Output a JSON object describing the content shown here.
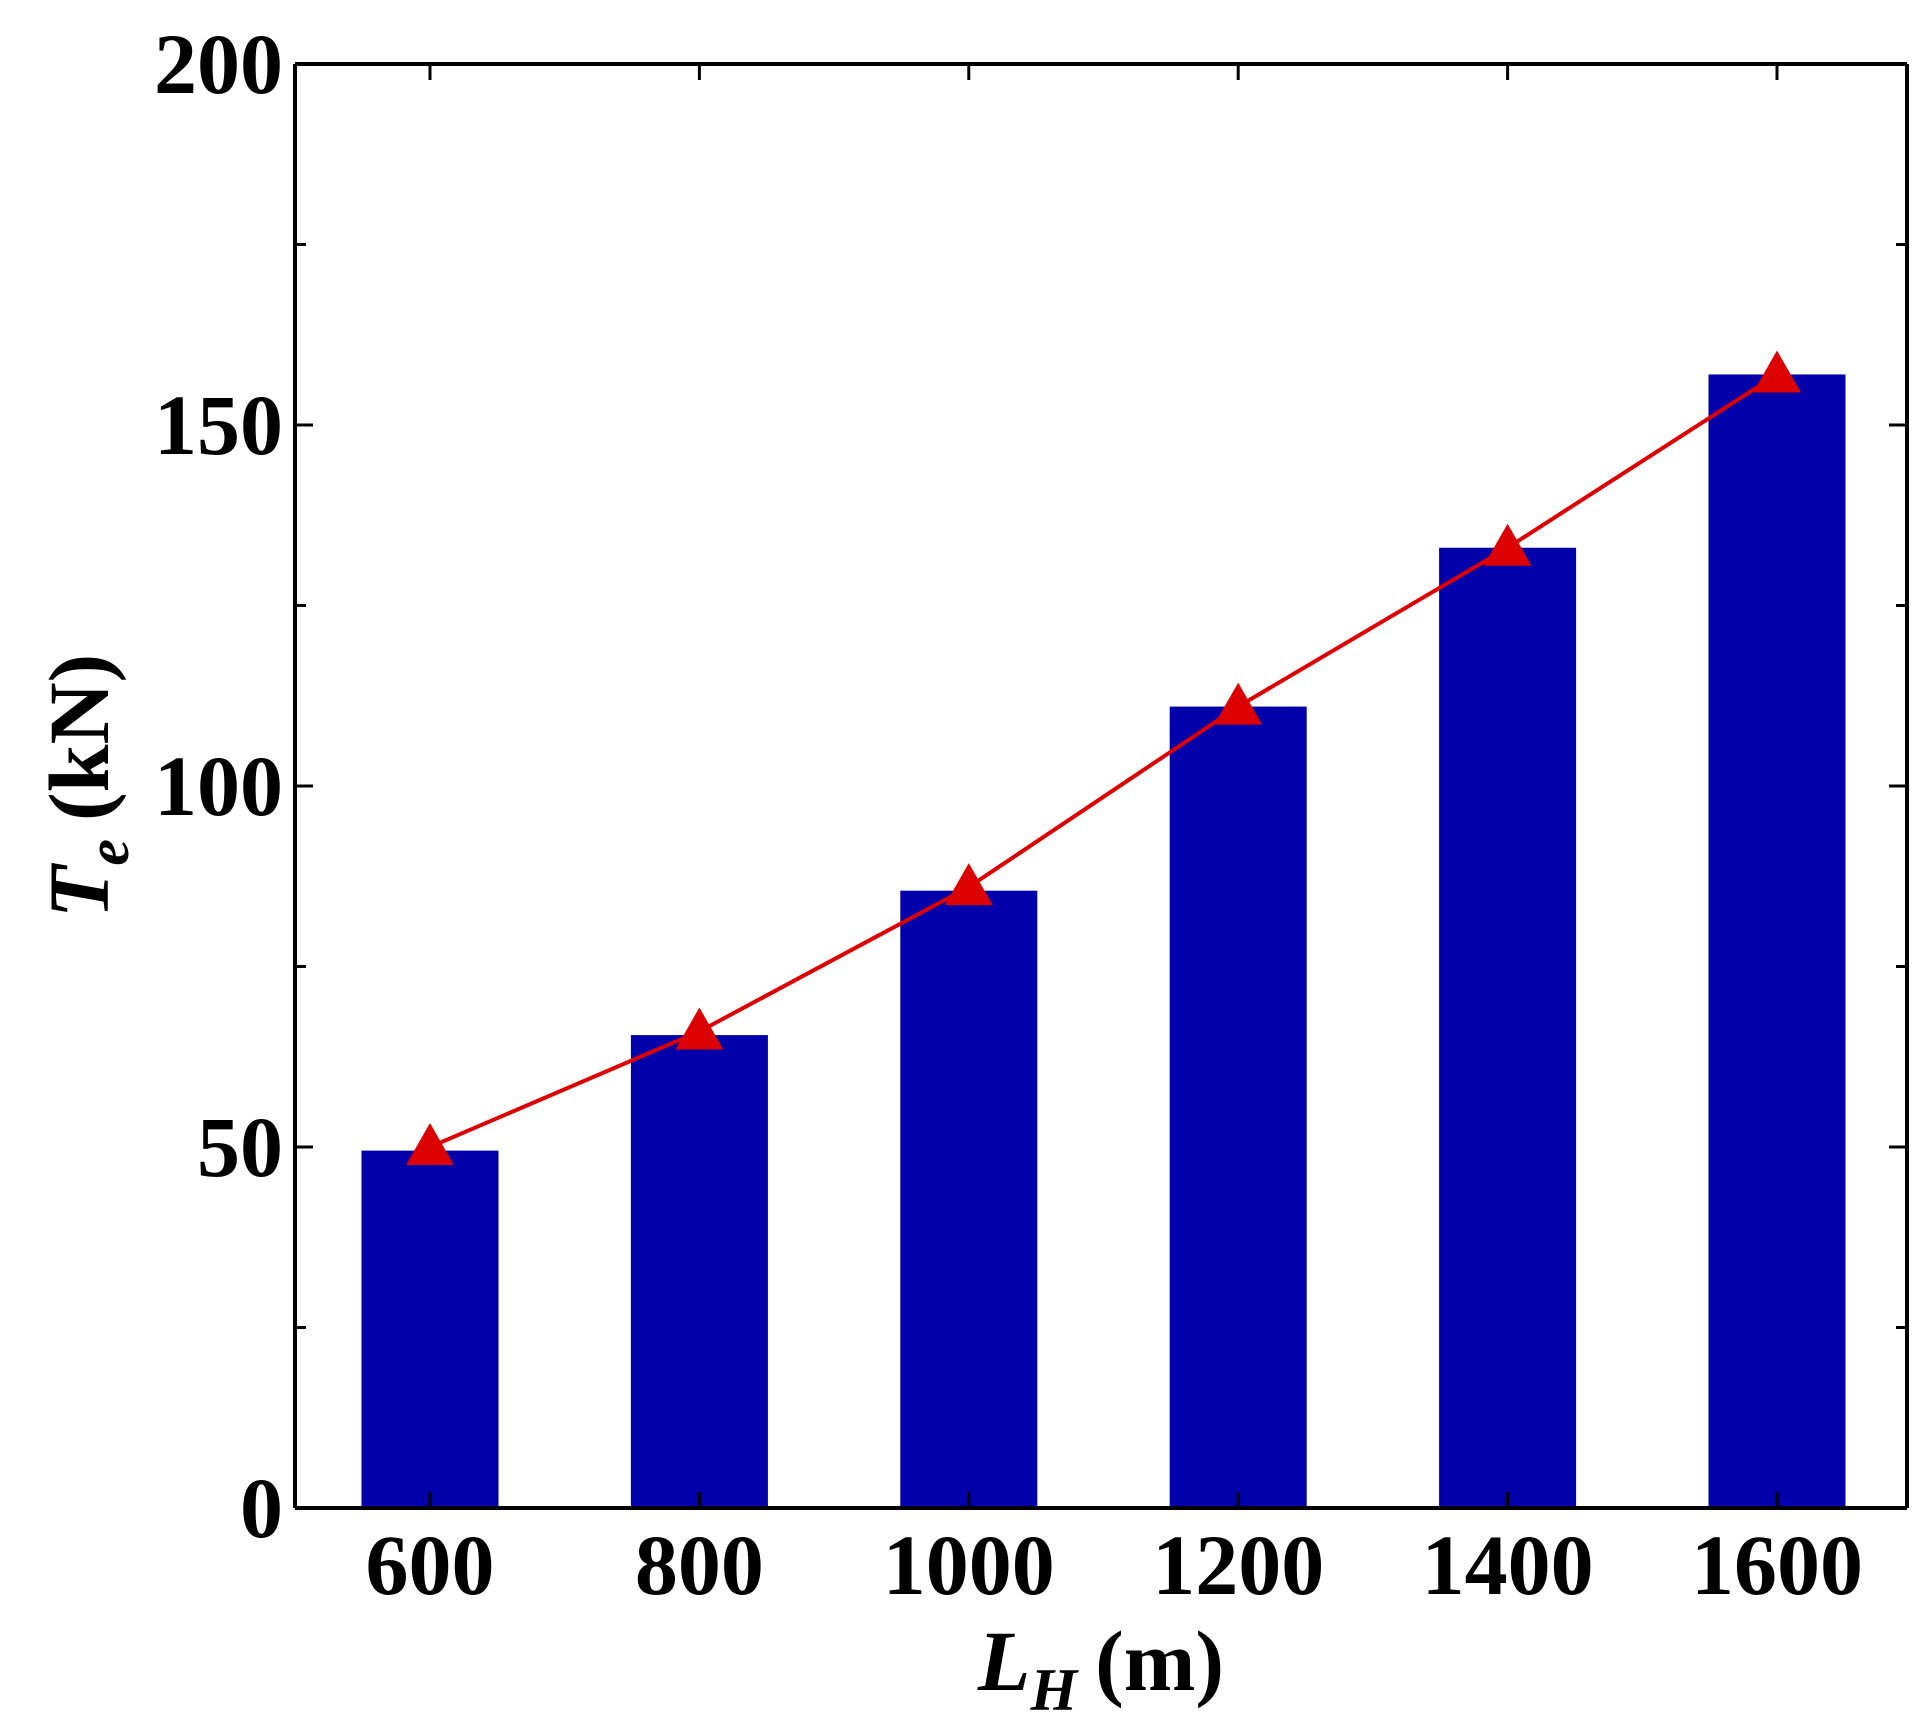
{
  "chart_data": {
    "type": "bar",
    "categories": [
      "600",
      "800",
      "1000",
      "1200",
      "1400",
      "1600"
    ],
    "series": [
      {
        "type": "bar",
        "values": [
          49.5,
          65.5,
          85.5,
          111,
          133,
          157
        ],
        "color": "#0000AA"
      },
      {
        "type": "line",
        "marker": "triangle",
        "values": [
          50,
          66,
          86,
          111,
          133,
          157
        ],
        "color": "#DD0000"
      }
    ],
    "ylim": [
      0,
      200
    ],
    "yticks": [
      "0",
      "50",
      "100",
      "150",
      "200"
    ],
    "ylabel": {
      "main": "T",
      "sub": "e",
      "unit": "(kN)"
    },
    "xlabel": {
      "main": "L",
      "sub": "H",
      "unit": "(m)"
    },
    "grid": false
  }
}
